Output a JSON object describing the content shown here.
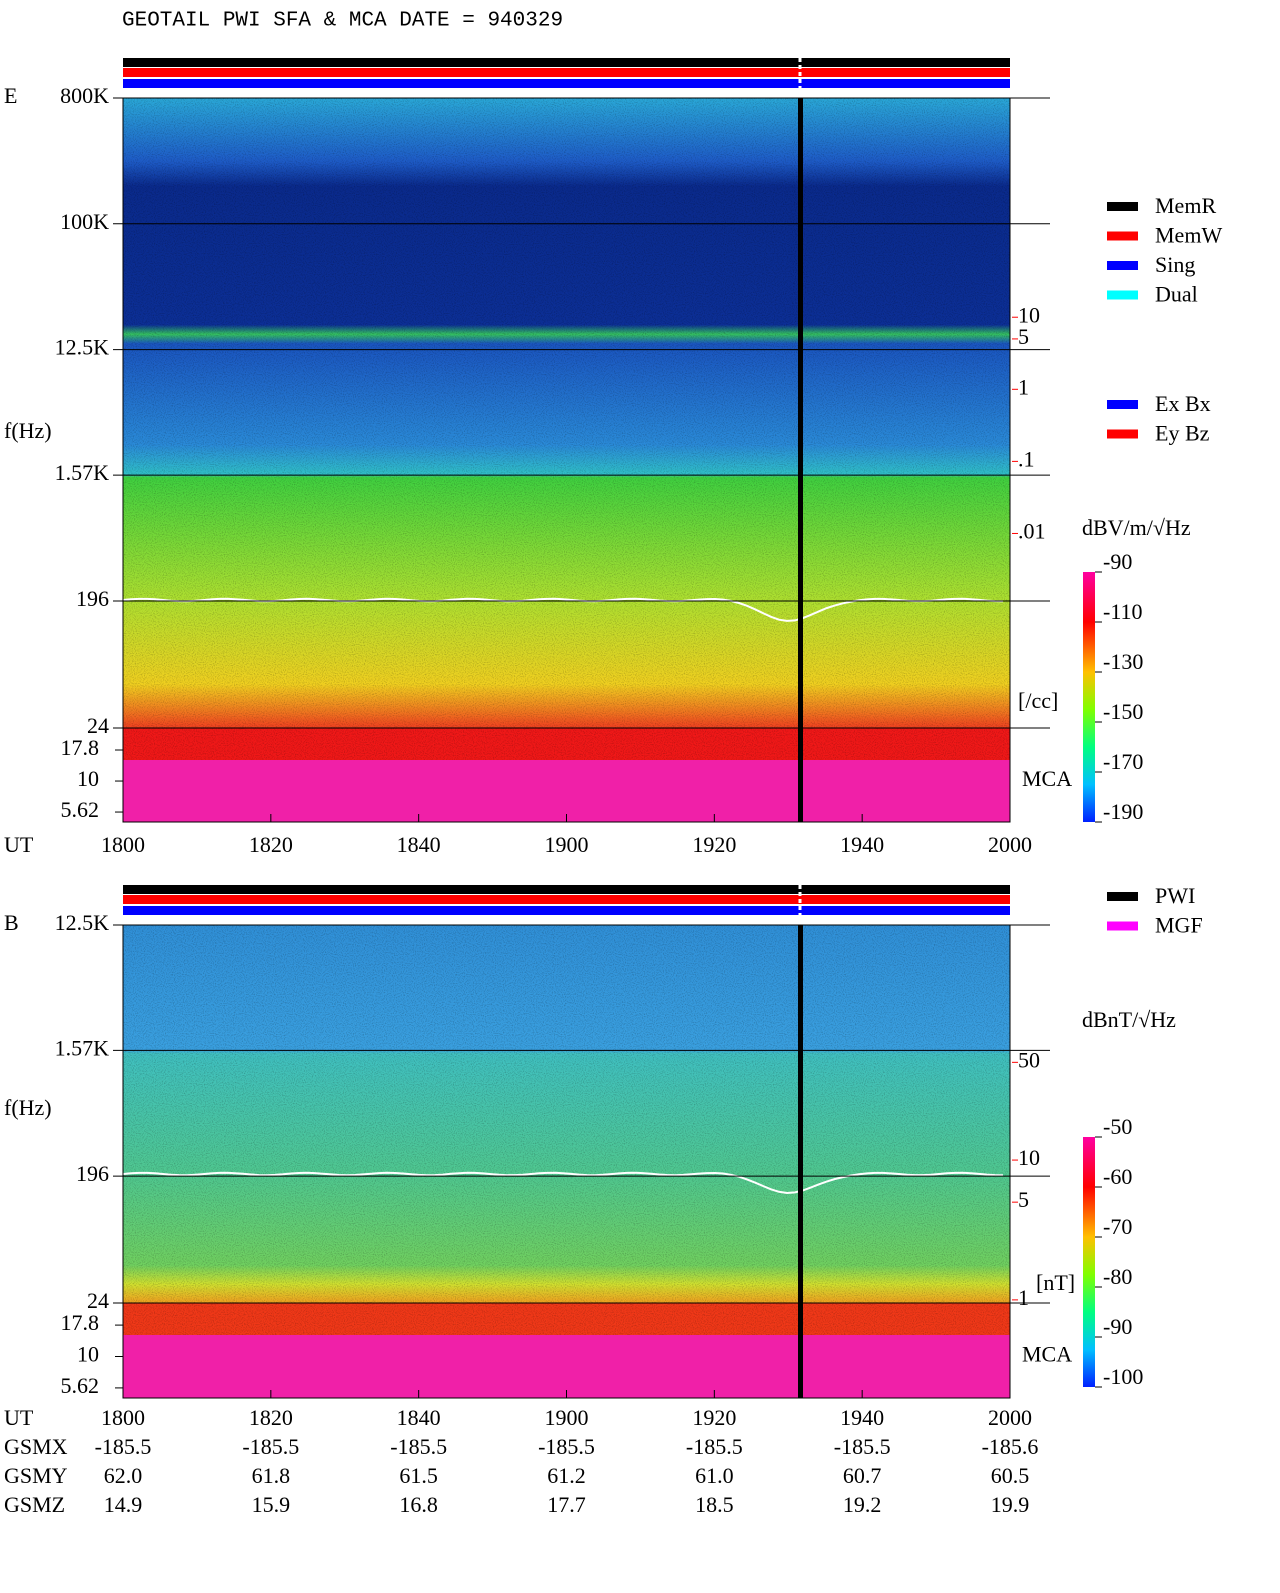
{
  "title": "GEOTAIL  PWI SFA & MCA   DATE = 940329",
  "chart_data": [
    {
      "type": "spectrogram",
      "panel_label": "E",
      "ylabel": "f(Hz)",
      "xlabel": "UT",
      "log_y": true,
      "ylim": [
        24,
        800000
      ],
      "yticks": [
        {
          "value": 800000,
          "label": "800K"
        },
        {
          "value": 100000,
          "label": "100K"
        },
        {
          "value": 12500,
          "label": "12.5K"
        },
        {
          "value": 1570,
          "label": "1.57K"
        },
        196,
        24
      ],
      "mca_label": "MCA",
      "mca_ylim": [
        4.67,
        26.8
      ],
      "mca_yticks": [
        17.8,
        10,
        5.62
      ],
      "y2_log": true,
      "y2lim": [
        2e-05,
        11000
      ],
      "y2ticks": [
        10,
        5,
        1,
        {
          "value": 0.1,
          "label": ".1"
        },
        {
          "value": 0.01,
          "label": ".01"
        }
      ],
      "y2_unit": "[/cc]",
      "y2_color": "#ff0000",
      "xticks": [
        "1800",
        "1820",
        "1840",
        "1900",
        "1920",
        "1940",
        "2000"
      ],
      "colorbar": {
        "label": "dBV/m/√Hz",
        "lim": [
          -190,
          -90
        ],
        "ticks": [
          -90,
          -110,
          -130,
          -150,
          -170,
          -190
        ]
      },
      "legends": [
        [
          {
            "name": "MemR",
            "color": "#000000"
          },
          {
            "name": "MemW",
            "color": "#ff0000"
          },
          {
            "name": "Sing",
            "color": "#0000ff"
          },
          {
            "name": "Dual",
            "color": "#00ffff"
          }
        ],
        [
          {
            "name": "Ex Bx",
            "color": "#0000ff"
          },
          {
            "name": "Ey Bz",
            "color": "#ff0000"
          }
        ]
      ]
    },
    {
      "type": "spectrogram",
      "panel_label": "B",
      "ylabel": "f(Hz)",
      "xlabel": "UT",
      "log_y": true,
      "ylim": [
        24,
        12500
      ],
      "yticks": [
        {
          "value": 12500,
          "label": "12.5K"
        },
        {
          "value": 1570,
          "label": "1.57K"
        },
        196,
        24
      ],
      "mca_label": "MCA",
      "mca_ylim": [
        4.67,
        26.7
      ],
      "mca_yticks": [
        17.8,
        10,
        5.62
      ],
      "y2_log": true,
      "y2lim": [
        0.95,
        480
      ],
      "y2ticks": [
        50,
        10,
        5,
        1
      ],
      "y2_unit": "[nT]",
      "y2_color": "#ff0000",
      "xticks": [
        "1800",
        "1820",
        "1840",
        "1900",
        "1920",
        "1940",
        "2000"
      ],
      "colorbar": {
        "label": "dBnT/√Hz",
        "lim": [
          -100,
          -50
        ],
        "ticks": [
          -50,
          -60,
          -70,
          -80,
          -90,
          -100
        ]
      },
      "legends": [
        [
          {
            "name": "PWI",
            "color": "#000000"
          },
          {
            "name": "MGF",
            "color": "#ff00ff"
          }
        ]
      ]
    }
  ],
  "orbit": {
    "rows": [
      {
        "label": "GSMX",
        "values": [
          "-185.5",
          "-185.5",
          "-185.5",
          "-185.5",
          "-185.5",
          "-185.5",
          "-185.6"
        ]
      },
      {
        "label": "GSMY",
        "values": [
          "62.0",
          "61.8",
          "61.5",
          "61.2",
          "61.0",
          "60.7",
          "60.5"
        ]
      },
      {
        "label": "GSMZ",
        "values": [
          "14.9",
          "15.9",
          "16.8",
          "17.7",
          "18.5",
          "19.2",
          "19.9"
        ]
      }
    ]
  }
}
